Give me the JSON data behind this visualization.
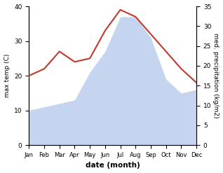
{
  "months": [
    "Jan",
    "Feb",
    "Mar",
    "Apr",
    "May",
    "Jun",
    "Jul",
    "Aug",
    "Sep",
    "Oct",
    "Nov",
    "Dec"
  ],
  "max_temp": [
    20,
    22,
    27,
    24,
    25,
    33,
    39,
    37,
    32,
    27,
    22,
    18
  ],
  "precipitation_left_scale": [
    10,
    11,
    12,
    13,
    21,
    27,
    37,
    37,
    31,
    19,
    15,
    16
  ],
  "temp_color": "#c0392b",
  "precip_color": "#c5d5f0",
  "temp_ylim": [
    0,
    40
  ],
  "precip_ylim": [
    0,
    35
  ],
  "temp_yticks": [
    0,
    10,
    20,
    30,
    40
  ],
  "precip_yticks": [
    0,
    5,
    10,
    15,
    20,
    25,
    30,
    35
  ],
  "xlabel": "date (month)",
  "ylabel_left": "max temp (C)",
  "ylabel_right": "med. precipitation (kg/m2)",
  "bg_color": "#ffffff"
}
